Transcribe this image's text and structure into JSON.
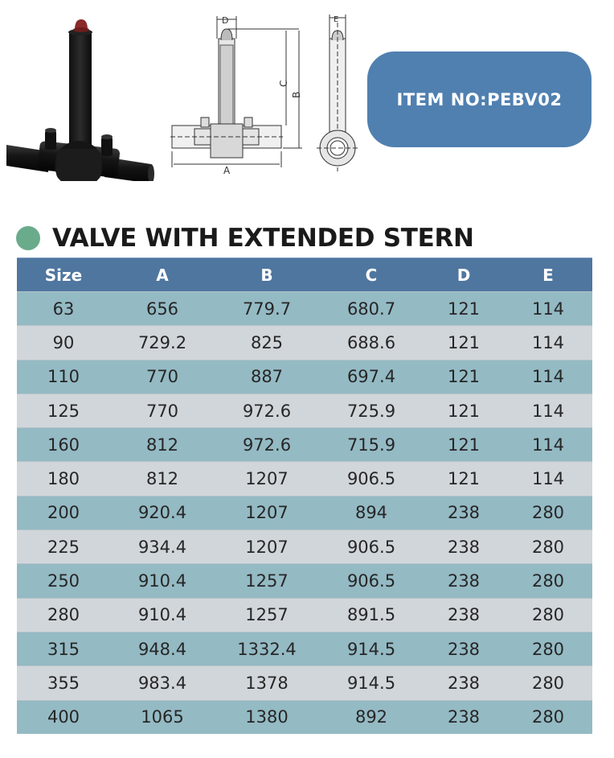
{
  "product": {
    "item_label": "ITEM NO:PEBV02",
    "title": "VALVE WITH EXTENDED STERN",
    "colors": {
      "badge": "#5080b0",
      "dot": "#6aab8c",
      "table_header": "#4f769f",
      "row_odd": "#94bac4",
      "row_even": "#d1d6db"
    }
  },
  "illustrations": {
    "photo": "valve-3d-render-icon",
    "drawing": "valve-dimension-drawing-icon",
    "dimension_labels": [
      "A",
      "B",
      "C",
      "D",
      "E"
    ]
  },
  "table": {
    "headers": [
      "Size",
      "A",
      "B",
      "C",
      "D",
      "E"
    ],
    "rows": [
      [
        "63",
        "656",
        "779.7",
        "680.7",
        "121",
        "114"
      ],
      [
        "90",
        "729.2",
        "825",
        "688.6",
        "121",
        "114"
      ],
      [
        "110",
        "770",
        "887",
        "697.4",
        "121",
        "114"
      ],
      [
        "125",
        "770",
        "972.6",
        "725.9",
        "121",
        "114"
      ],
      [
        "160",
        "812",
        "972.6",
        "715.9",
        "121",
        "114"
      ],
      [
        "180",
        "812",
        "1207",
        "906.5",
        "121",
        "114"
      ],
      [
        "200",
        "920.4",
        "1207",
        "894",
        "238",
        "280"
      ],
      [
        "225",
        "934.4",
        "1207",
        "906.5",
        "238",
        "280"
      ],
      [
        "250",
        "910.4",
        "1257",
        "906.5",
        "238",
        "280"
      ],
      [
        "280",
        "910.4",
        "1257",
        "891.5",
        "238",
        "280"
      ],
      [
        "315",
        "948.4",
        "1332.4",
        "914.5",
        "238",
        "280"
      ],
      [
        "355",
        "983.4",
        "1378",
        "914.5",
        "238",
        "280"
      ],
      [
        "400",
        "1065",
        "1380",
        "892",
        "238",
        "280"
      ]
    ]
  }
}
